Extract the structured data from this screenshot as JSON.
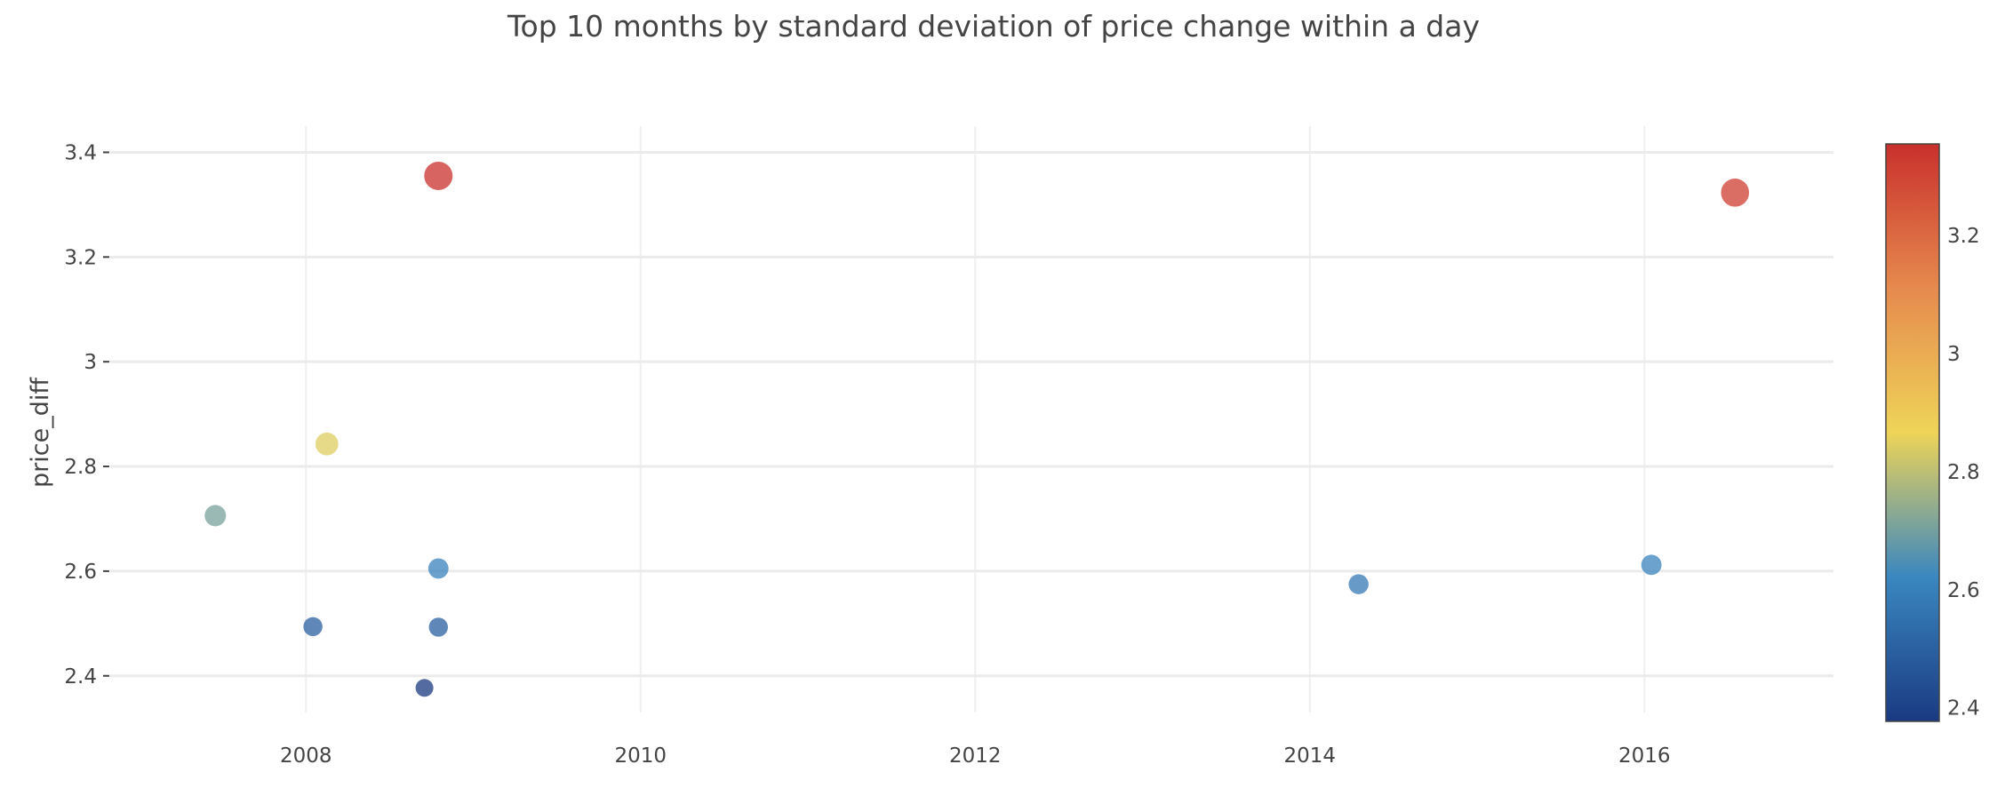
{
  "chart_data": {
    "type": "scatter",
    "title": "Top 10 months by standard deviation of price change within a day",
    "xlabel": "",
    "ylabel": "price_diff",
    "x_ticks": [
      "2008",
      "2010",
      "2012",
      "2014",
      "2016"
    ],
    "x_tick_values": [
      2008,
      2010,
      2012,
      2014,
      2016
    ],
    "y_ticks": [
      "2.4",
      "2.6",
      "2.8",
      "3",
      "3.2",
      "3.4"
    ],
    "y_tick_values": [
      2.4,
      2.6,
      2.8,
      3.0,
      3.2,
      3.4
    ],
    "xlim": [
      2006.83,
      2017.13
    ],
    "ylim": [
      2.33,
      3.45
    ],
    "grid": true,
    "legend": "none",
    "points": [
      {
        "x": "2007-06",
        "y": 2.706
      },
      {
        "x": "2008-01",
        "y": 2.494
      },
      {
        "x": "2008-02",
        "y": 2.843
      },
      {
        "x": "2008-09",
        "y": 2.377
      },
      {
        "x": "2008-10",
        "y": 3.355
      },
      {
        "x": "2008-10",
        "y": 2.605
      },
      {
        "x": "2008-10",
        "y": 2.493
      },
      {
        "x": "2014-04",
        "y": 2.575
      },
      {
        "x": "2016-01",
        "y": 2.612
      },
      {
        "x": "2016-07",
        "y": 3.323
      }
    ],
    "colorbar": {
      "ticks": [
        "2.4",
        "2.6",
        "2.8",
        "3",
        "3.2"
      ],
      "tick_values": [
        2.4,
        2.6,
        2.8,
        3.0,
        3.2
      ],
      "range": [
        2.377,
        3.355
      ],
      "colorscale": [
        "#1a3a82",
        "#3a87c0",
        "#eed458",
        "#e68a4e",
        "#c9302c"
      ]
    }
  }
}
